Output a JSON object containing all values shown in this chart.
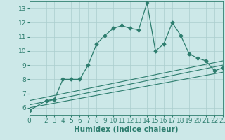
{
  "title": "",
  "xlabel": "Humidex (Indice chaleur)",
  "bg_color": "#cce8e8",
  "line_color": "#2d7d6e",
  "xlim": [
    0,
    23
  ],
  "ylim": [
    5.5,
    13.5
  ],
  "yticks": [
    6,
    7,
    8,
    9,
    10,
    11,
    12,
    13
  ],
  "xticks": [
    0,
    2,
    3,
    4,
    5,
    6,
    7,
    8,
    9,
    10,
    11,
    12,
    13,
    14,
    15,
    16,
    17,
    18,
    19,
    20,
    21,
    22,
    23
  ],
  "main_line_x": [
    0,
    2,
    3,
    4,
    5,
    6,
    7,
    8,
    9,
    10,
    11,
    12,
    13,
    14,
    15,
    16,
    17,
    18,
    19,
    20,
    21,
    22,
    23
  ],
  "main_line_y": [
    5.8,
    6.5,
    6.6,
    8.0,
    8.0,
    8.0,
    9.0,
    10.5,
    11.1,
    11.6,
    11.8,
    11.6,
    11.5,
    13.4,
    10.0,
    10.5,
    12.0,
    11.1,
    9.8,
    9.5,
    9.3,
    8.6,
    8.8
  ],
  "line2_x": [
    0,
    23
  ],
  "line2_y": [
    6.0,
    8.5
  ],
  "line3_x": [
    0,
    23
  ],
  "line3_y": [
    6.2,
    9.0
  ],
  "line4_x": [
    0,
    23
  ],
  "line4_y": [
    6.5,
    9.3
  ],
  "grid_color": "#aacece",
  "tick_fontsize": 6.5,
  "xlabel_fontsize": 7.5
}
